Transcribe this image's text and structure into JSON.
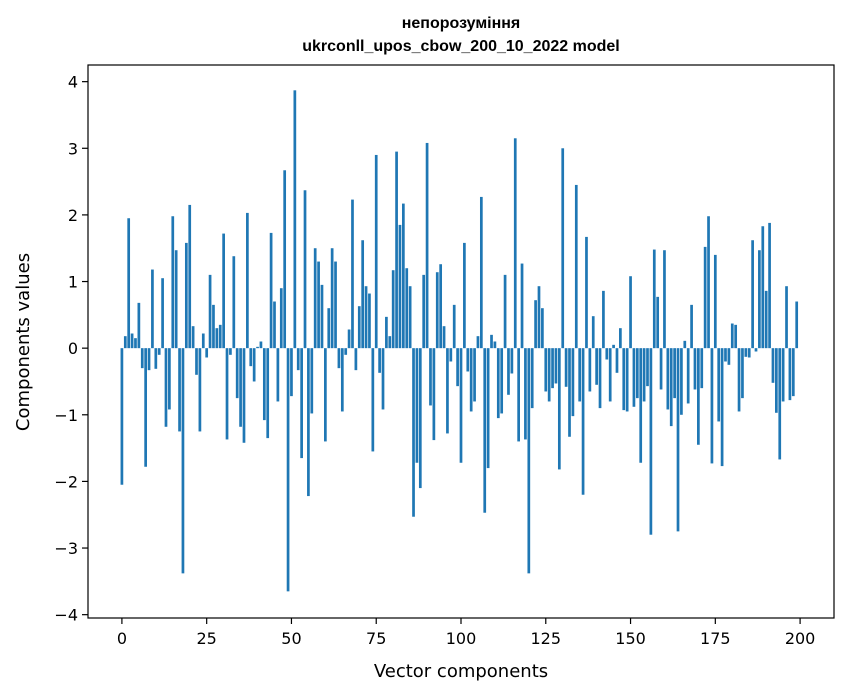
{
  "chart_data": {
    "type": "bar",
    "title": "непорозуміння",
    "subtitle": "ukrconll_upos_cbow_200_10_2022 model",
    "xlabel": "Vector components",
    "ylabel": "Components values",
    "xlim": [
      -10,
      210
    ],
    "ylim": [
      -4.05,
      4.25
    ],
    "xticks": [
      0,
      25,
      50,
      75,
      100,
      125,
      150,
      175,
      200
    ],
    "yticks": [
      -4,
      -3,
      -2,
      -1,
      0,
      1,
      2,
      3,
      4
    ],
    "xtick_labels": [
      "0",
      "25",
      "50",
      "75",
      "100",
      "125",
      "150",
      "175",
      "200"
    ],
    "ytick_labels": [
      "−4",
      "−3",
      "−2",
      "−1",
      "0",
      "1",
      "2",
      "3",
      "4"
    ],
    "grid": false,
    "bar_color": "#1f77b4",
    "values": [
      -2.05,
      0.18,
      1.95,
      0.22,
      0.15,
      0.68,
      -0.3,
      -1.78,
      -0.33,
      1.18,
      -0.31,
      -0.1,
      1.05,
      -1.18,
      -0.92,
      1.98,
      1.47,
      -1.25,
      -3.38,
      1.58,
      2.15,
      0.33,
      -0.4,
      -1.25,
      0.22,
      -0.14,
      1.1,
      0.65,
      0.3,
      0.35,
      1.72,
      -1.37,
      -0.1,
      1.38,
      -0.75,
      -1.18,
      -1.42,
      2.03,
      -0.27,
      -0.5,
      0.02,
      0.1,
      -1.08,
      -1.35,
      1.73,
      0.7,
      -0.8,
      0.9,
      2.67,
      -3.65,
      -0.72,
      3.87,
      -0.33,
      -1.65,
      2.37,
      -2.22,
      -0.98,
      1.5,
      1.3,
      0.95,
      -1.4,
      0.6,
      1.5,
      1.3,
      -0.3,
      -0.95,
      -0.1,
      0.28,
      2.23,
      -0.33,
      0.63,
      1.62,
      0.93,
      0.82,
      -1.55,
      2.9,
      -0.37,
      -0.92,
      0.47,
      0.18,
      1.17,
      2.95,
      1.85,
      2.17,
      1.2,
      0.93,
      -2.53,
      -1.72,
      -2.1,
      1.1,
      3.08,
      -0.86,
      -1.38,
      1.14,
      1.26,
      0.33,
      -1.28,
      -0.2,
      0.65,
      -0.57,
      -1.72,
      1.58,
      -0.35,
      -0.95,
      -0.8,
      0.18,
      2.27,
      -2.47,
      -1.8,
      0.2,
      0.1,
      -1.05,
      -0.98,
      1.1,
      -0.7,
      -0.38,
      3.15,
      -1.4,
      1.27,
      -1.37,
      -3.38,
      -0.9,
      0.72,
      0.93,
      0.6,
      -0.65,
      -0.8,
      -0.6,
      -0.53,
      -1.82,
      3.0,
      -0.58,
      -1.33,
      -1.02,
      2.45,
      -0.8,
      -2.2,
      1.67,
      -0.65,
      0.48,
      -0.55,
      -0.9,
      0.86,
      -0.17,
      -0.8,
      0.05,
      -0.37,
      0.3,
      -0.93,
      -0.95,
      1.08,
      -0.88,
      -0.75,
      -1.72,
      -0.8,
      -0.57,
      -2.8,
      1.48,
      0.77,
      -0.62,
      1.47,
      -0.92,
      -1.17,
      -0.75,
      -2.75,
      -1.0,
      0.11,
      -0.83,
      0.65,
      -0.62,
      -1.45,
      -0.6,
      1.52,
      1.98,
      -1.73,
      1.4,
      -1.1,
      -1.77,
      -0.2,
      -0.25,
      0.37,
      0.35,
      -0.95,
      -0.75,
      -0.13,
      -0.14,
      1.62,
      -0.05,
      1.47,
      1.83,
      0.86,
      1.88,
      -0.52,
      -0.97,
      -1.67,
      -0.8,
      0.93,
      -0.78,
      -0.72,
      0.7
    ]
  }
}
